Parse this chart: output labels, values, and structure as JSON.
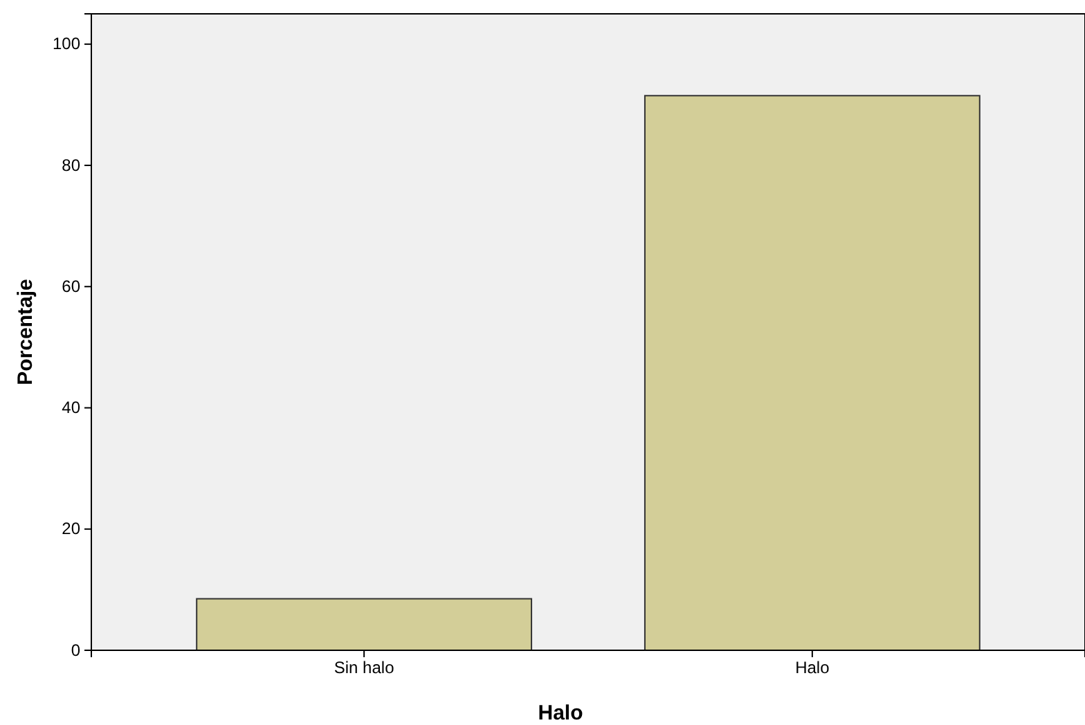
{
  "chart_data": {
    "type": "bar",
    "xlabel": "Halo",
    "ylabel": "Porcentaje",
    "categories": [
      "Sin halo",
      "Halo"
    ],
    "values": [
      8.5,
      91.5
    ],
    "color": "#d3ce98",
    "ylim": [
      0,
      105
    ],
    "yticks": [
      0,
      20,
      40,
      60,
      80,
      100
    ],
    "grid": false
  }
}
